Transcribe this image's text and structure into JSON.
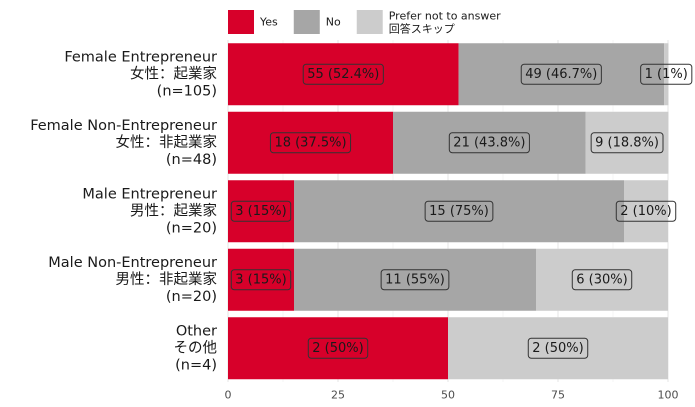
{
  "chart_data": {
    "type": "bar",
    "orientation": "horizontal",
    "stacked": true,
    "categories": [
      [
        "Female Entrepreneur",
        "女性：起業家",
        "(n=105)"
      ],
      [
        "Female Non-Entrepreneur",
        "女性：非起業家",
        "(n=48)"
      ],
      [
        "Male Entrepreneur",
        "男性：起業家",
        "(n=20)"
      ],
      [
        "Male Non-Entrepreneur",
        "男性：非起業家",
        "(n=20)"
      ],
      [
        "Other",
        "その他",
        "(n=4)"
      ]
    ],
    "series": [
      {
        "name": "Yes",
        "color": "#d7002a",
        "values": [
          52.4,
          37.5,
          15,
          15,
          50
        ],
        "labels": [
          "55 (52.4%)",
          "18 (37.5%)",
          "3 (15%)",
          "3 (15%)",
          "2 (50%)"
        ]
      },
      {
        "name": "No",
        "color": "#a6a6a6",
        "values": [
          46.7,
          43.8,
          75,
          55,
          0
        ],
        "labels": [
          "49 (46.7%)",
          "21 (43.8%)",
          "15 (75%)",
          "11 (55%)",
          null
        ]
      },
      {
        "name": [
          "Prefer not to answer",
          "回答スキップ"
        ],
        "color": "#cccccc",
        "values": [
          1,
          18.8,
          10,
          30,
          50
        ],
        "labels": [
          "1 (1%)",
          "9 (18.8%)",
          "2 (10%)",
          "6 (30%)",
          "2 (50%)"
        ]
      }
    ],
    "xlim": [
      0,
      100
    ],
    "xticks": [
      0,
      25,
      50,
      75,
      100
    ],
    "grid": true,
    "legend_position": "top"
  }
}
